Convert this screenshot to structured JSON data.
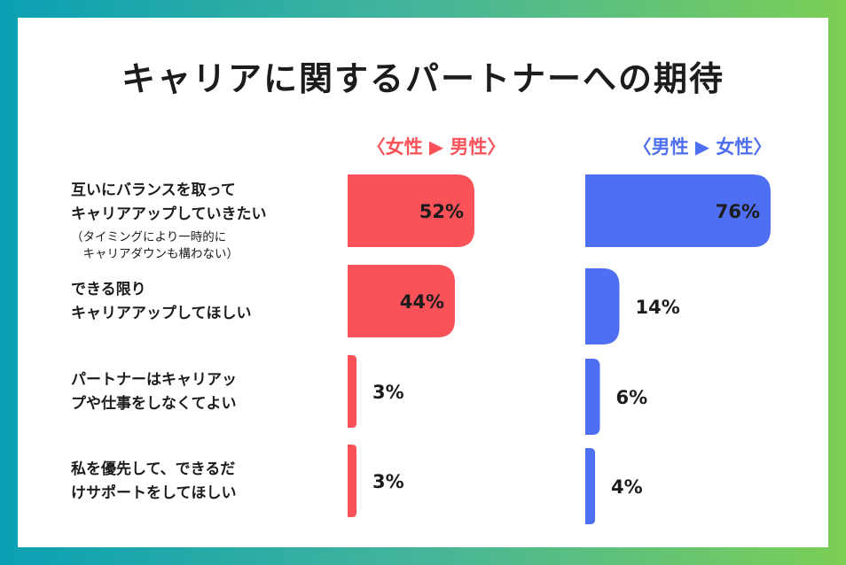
{
  "title": "キャリアに関するパートナーへの期待",
  "colors": {
    "women": "#fa5258",
    "men": "#4f6ff2"
  },
  "chart_data": {
    "type": "bar",
    "orientation": "horizontal",
    "title": "キャリアに関するパートナーへの期待",
    "categories": [
      "互いにバランスを取って\nキャリアアップしていきたい",
      "できる限り\nキャリアアップしてほしい",
      "パートナーはキャリアッ\nプや仕事をしなくてよい",
      "私を優先して、できるだ\nけサポートをしてほしい"
    ],
    "category_notes": [
      "（タイミングにより一時的に\n　キャリアダウンも構わない）",
      "",
      "",
      ""
    ],
    "series": [
      {
        "name": "〈女性 ▶ 男性〉",
        "values": [
          52,
          44,
          3,
          3
        ],
        "labels": [
          "52%",
          "44%",
          "3%",
          "3%"
        ]
      },
      {
        "name": "〈男性 ▶ 女性〉",
        "values": [
          76,
          14,
          6,
          4
        ],
        "labels": [
          "76%",
          "14%",
          "6%",
          "4%"
        ]
      }
    ],
    "unit": "%"
  }
}
